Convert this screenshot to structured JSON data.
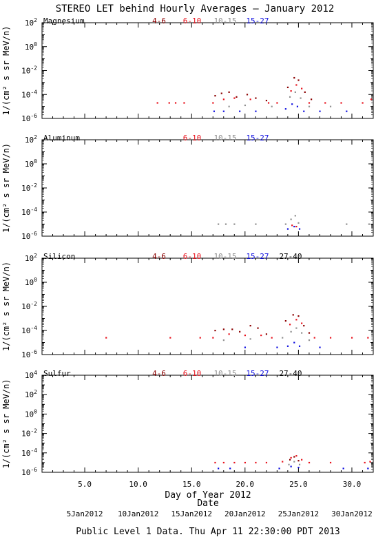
{
  "title": "STEREO LET behind Hourly Averages – January 2012",
  "xlabel": "Day of Year 2012",
  "date_label": "Date",
  "footer": "Public Level 1 Data. Thu Apr 11 22:30:00 PDT 2013",
  "x_ticks": [
    5,
    10,
    15,
    20,
    25,
    30
  ],
  "x_tick_labels": [
    "5.0",
    "10.0",
    "15.0",
    "20.0",
    "25.0",
    "30.0"
  ],
  "date_ticks": [
    {
      "day": 5,
      "label": "5Jan2012"
    },
    {
      "day": 10,
      "label": "10Jan2012"
    },
    {
      "day": 15,
      "label": "15Jan2012"
    },
    {
      "day": 20,
      "label": "20Jan2012"
    },
    {
      "day": 25,
      "label": "25Jan2012"
    },
    {
      "day": 30,
      "label": "30Jan2012"
    }
  ],
  "colors": {
    "4-6": "#8b0000",
    "6-10": "#e8141e",
    "10-15": "#909090",
    "15-27": "#1010e0",
    "27-40": "#000000"
  },
  "chart_data": [
    {
      "type": "scatter",
      "element": "Magnesium",
      "ylabel": "1/(cm² s sr MeV/n)",
      "xlim": [
        1,
        32
      ],
      "ylim_log10": [
        -6,
        2
      ],
      "y_tick_exponents": [
        -6,
        -4,
        -2,
        0,
        2
      ],
      "legend": [
        "4-6",
        "6-10",
        "10-15",
        "15-27"
      ],
      "series": [
        {
          "name": "4-6",
          "points": [
            [
              17.2,
              -4.1
            ],
            [
              17.8,
              -3.9
            ],
            [
              18.5,
              -3.8
            ],
            [
              19.2,
              -4.2
            ],
            [
              20.2,
              -4.0
            ],
            [
              21.0,
              -4.3
            ],
            [
              22.0,
              -4.5
            ],
            [
              24.0,
              -3.4
            ],
            [
              24.6,
              -2.6
            ],
            [
              25.0,
              -2.8
            ],
            [
              25.6,
              -3.8
            ],
            [
              26.2,
              -4.4
            ]
          ]
        },
        {
          "name": "6-10",
          "points": [
            [
              11.8,
              -4.7
            ],
            [
              12.9,
              -4.7
            ],
            [
              13.5,
              -4.7
            ],
            [
              14.3,
              -4.7
            ],
            [
              17.0,
              -4.7
            ],
            [
              18.0,
              -4.4
            ],
            [
              19.0,
              -4.3
            ],
            [
              20.5,
              -4.4
            ],
            [
              22.2,
              -4.7
            ],
            [
              23.0,
              -4.7
            ],
            [
              24.3,
              -3.7
            ],
            [
              24.8,
              -3.2
            ],
            [
              25.3,
              -3.5
            ],
            [
              26.0,
              -4.7
            ],
            [
              27.5,
              -4.7
            ],
            [
              29.0,
              -4.7
            ],
            [
              31.0,
              -4.7
            ],
            [
              31.8,
              -4.4
            ]
          ]
        },
        {
          "name": "10-15",
          "points": [
            [
              18.5,
              -5.0
            ],
            [
              20.0,
              -4.9
            ],
            [
              22.5,
              -5.0
            ],
            [
              24.2,
              -4.2
            ],
            [
              24.7,
              -3.8
            ],
            [
              25.2,
              -4.3
            ],
            [
              26.0,
              -5.0
            ],
            [
              28.0,
              -5.0
            ]
          ]
        },
        {
          "name": "15-27",
          "points": [
            [
              17.1,
              -5.4
            ],
            [
              18.0,
              -5.4
            ],
            [
              19.5,
              -5.4
            ],
            [
              21.0,
              -5.4
            ],
            [
              23.8,
              -5.2
            ],
            [
              24.4,
              -4.8
            ],
            [
              24.9,
              -5.0
            ],
            [
              25.5,
              -5.4
            ],
            [
              27.0,
              -5.4
            ],
            [
              29.5,
              -5.4
            ]
          ]
        }
      ]
    },
    {
      "type": "scatter",
      "element": "Aluminum",
      "ylabel": "1/(cm² s sr MeV/n)",
      "xlim": [
        1,
        32
      ],
      "ylim_log10": [
        -6,
        2
      ],
      "y_tick_exponents": [
        -6,
        -4,
        -2,
        0,
        2
      ],
      "legend": [
        "6-10",
        "10-15",
        "15-27"
      ],
      "series": [
        {
          "name": "6-10",
          "points": [
            [
              24.4,
              -5.1
            ],
            [
              24.8,
              -5.2
            ]
          ]
        },
        {
          "name": "10-15",
          "points": [
            [
              17.5,
              -5.0
            ],
            [
              18.2,
              -5.0
            ],
            [
              19.0,
              -5.0
            ],
            [
              21.0,
              -5.0
            ],
            [
              23.8,
              -5.0
            ],
            [
              24.3,
              -4.6
            ],
            [
              24.7,
              -4.3
            ],
            [
              25.0,
              -4.9
            ],
            [
              29.5,
              -5.0
            ],
            [
              31.6,
              -5.0
            ]
          ]
        },
        {
          "name": "15-27",
          "points": [
            [
              24.0,
              -5.4
            ],
            [
              24.6,
              -5.2
            ],
            [
              25.1,
              -5.4
            ]
          ]
        }
      ]
    },
    {
      "type": "scatter",
      "element": "Silicon",
      "ylabel": "1/(cm² s sr MeV/n)",
      "xlim": [
        1,
        32
      ],
      "ylim_log10": [
        -6,
        2
      ],
      "y_tick_exponents": [
        -6,
        -4,
        -2,
        0,
        2
      ],
      "legend": [
        "4-6",
        "6-10",
        "10-15",
        "15-27",
        "27-40"
      ],
      "series": [
        {
          "name": "4-6",
          "points": [
            [
              17.2,
              -4.0
            ],
            [
              18.0,
              -3.9
            ],
            [
              18.8,
              -3.9
            ],
            [
              19.5,
              -4.1
            ],
            [
              20.5,
              -3.6
            ],
            [
              21.2,
              -3.8
            ],
            [
              22.0,
              -4.3
            ],
            [
              23.8,
              -3.2
            ],
            [
              24.5,
              -2.7
            ],
            [
              25.0,
              -2.8
            ],
            [
              25.5,
              -3.6
            ],
            [
              26.0,
              -4.2
            ]
          ]
        },
        {
          "name": "6-10",
          "points": [
            [
              7.0,
              -4.6
            ],
            [
              13.0,
              -4.6
            ],
            [
              15.8,
              -4.6
            ],
            [
              17.0,
              -4.6
            ],
            [
              18.5,
              -4.3
            ],
            [
              20.0,
              -4.4
            ],
            [
              21.5,
              -4.4
            ],
            [
              22.5,
              -4.6
            ],
            [
              24.2,
              -3.5
            ],
            [
              24.8,
              -3.1
            ],
            [
              25.3,
              -3.4
            ],
            [
              26.5,
              -4.6
            ],
            [
              28.0,
              -4.6
            ],
            [
              30.0,
              -4.6
            ],
            [
              31.5,
              -4.6
            ]
          ]
        },
        {
          "name": "10-15",
          "points": [
            [
              18.0,
              -4.8
            ],
            [
              20.5,
              -4.7
            ],
            [
              23.5,
              -4.6
            ],
            [
              24.3,
              -4.1
            ],
            [
              24.8,
              -3.8
            ],
            [
              25.3,
              -4.2
            ],
            [
              26.0,
              -4.8
            ]
          ]
        },
        {
          "name": "15-27",
          "points": [
            [
              20.0,
              -5.4
            ],
            [
              23.0,
              -5.4
            ],
            [
              24.0,
              -5.3
            ],
            [
              24.6,
              -5.0
            ],
            [
              25.1,
              -5.3
            ],
            [
              27.0,
              -5.4
            ]
          ]
        },
        {
          "name": "27-40",
          "points": []
        }
      ]
    },
    {
      "type": "scatter",
      "element": "Sulfur",
      "ylabel": "1/(cm² s sr MeV/n)",
      "xlim": [
        1,
        32
      ],
      "ylim_log10": [
        -6,
        4
      ],
      "y_tick_exponents": [
        -6,
        -4,
        -2,
        0,
        2,
        4
      ],
      "legend": [
        "4-6",
        "6-10",
        "10-15",
        "15-27",
        "27-40"
      ],
      "series": [
        {
          "name": "4-6",
          "points": [
            [
              24.2,
              -4.7
            ],
            [
              24.6,
              -4.4
            ],
            [
              25.0,
              -4.8
            ]
          ]
        },
        {
          "name": "6-10",
          "points": [
            [
              17.2,
              -5.0
            ],
            [
              18.0,
              -5.0
            ],
            [
              19.0,
              -5.0
            ],
            [
              20.0,
              -5.0
            ],
            [
              21.0,
              -5.0
            ],
            [
              22.0,
              -5.0
            ],
            [
              23.5,
              -4.9
            ],
            [
              24.3,
              -4.5
            ],
            [
              24.8,
              -4.3
            ],
            [
              25.3,
              -4.7
            ],
            [
              26.0,
              -5.0
            ],
            [
              28.0,
              -5.0
            ],
            [
              31.2,
              -5.0
            ],
            [
              31.7,
              -4.9
            ]
          ]
        },
        {
          "name": "10-15",
          "points": [
            [
              24.1,
              -5.2
            ],
            [
              24.6,
              -4.9
            ],
            [
              25.1,
              -5.2
            ]
          ]
        },
        {
          "name": "15-27",
          "points": [
            [
              17.5,
              -5.6
            ],
            [
              18.6,
              -5.6
            ],
            [
              23.2,
              -5.6
            ],
            [
              24.3,
              -5.4
            ],
            [
              25.0,
              -5.5
            ],
            [
              29.2,
              -5.6
            ],
            [
              31.5,
              -5.6
            ]
          ]
        },
        {
          "name": "27-40",
          "points": []
        }
      ]
    }
  ]
}
